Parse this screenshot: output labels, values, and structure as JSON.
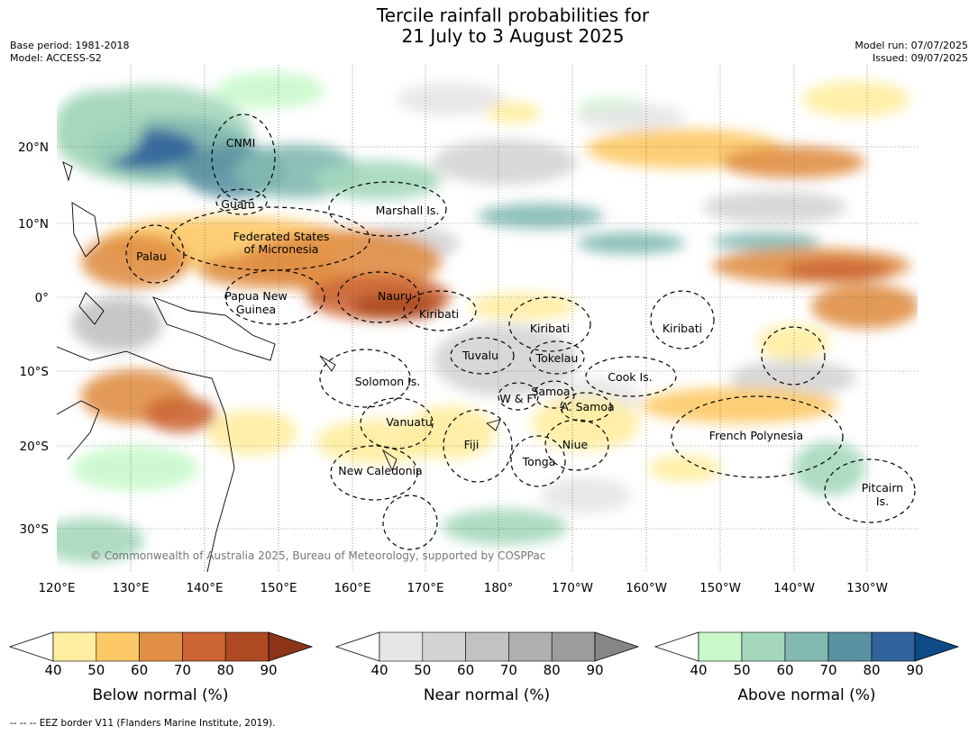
{
  "title": {
    "line1": "Tercile rainfall probabilities for",
    "line2": "21 July to 3 August 2025"
  },
  "header_left": {
    "base_period": "Base period: 1981-2018",
    "model": "Model: ACCESS-S2"
  },
  "header_right": {
    "model_run": "Model run: 07/07/2025",
    "issued": "Issued: 09/07/2025"
  },
  "lat_labels": [
    "20°N",
    "10°N",
    "0°",
    "10°S",
    "20°S",
    "30°S"
  ],
  "lon_labels": [
    "120°E",
    "130°E",
    "140°E",
    "150°E",
    "160°E",
    "170°E",
    "180°",
    "170°W",
    "160°W",
    "150°W",
    "140°W",
    "130°W"
  ],
  "region_labels": [
    "CNMI",
    "Guam",
    "Marshall Is.",
    "Federated States",
    "of Micronesia",
    "Palau",
    "Papua New",
    "Guinea",
    "Nauru",
    "Kiribati",
    "Kiribati",
    "Kiribati",
    "Tuvalu",
    "Tokelau",
    "Cook Is.",
    "Solomon Is.",
    "W & F",
    "Samoa",
    "A. Samoa",
    "Vanuatu",
    "Fiji",
    "Niue",
    "Tonga",
    "French Polynesia",
    "New Caledonia",
    "Pitcairn",
    "Is."
  ],
  "copyright": "© Commonwealth of Australia 2025, Bureau of Meteorology, supported by COSPPac",
  "colorbars": [
    {
      "label": "Below normal (%)",
      "colors": [
        "#ffeda0",
        "#fdc966",
        "#e08f45",
        "#cc6533",
        "#ad4a22",
        "#8c3318"
      ]
    },
    {
      "label": "Near normal (%)",
      "colors": [
        "#e6e6e6",
        "#d4d4d4",
        "#c2c2c2",
        "#afafaf",
        "#9c9c9c",
        "#868686"
      ]
    },
    {
      "label": "Above normal (%)",
      "colors": [
        "#c9f8cb",
        "#a5d8bb",
        "#82b9b1",
        "#5a92a2",
        "#30639b",
        "#0e4b86"
      ]
    }
  ],
  "colorbar_ticks": [
    "40",
    "50",
    "60",
    "70",
    "80",
    "90"
  ],
  "footnote": "--  --  -- EEZ border V11 (Flanders Marine Institute, 2019)."
}
